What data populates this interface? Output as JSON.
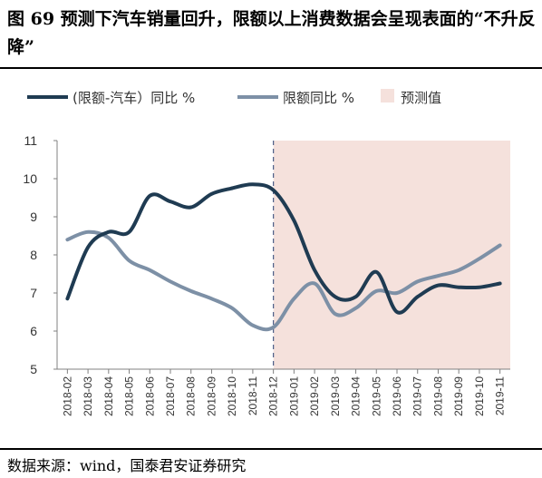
{
  "figure": {
    "title": "图 69 预测下汽车销量回升，限额以上消费数据会呈现表面的“不升反降”",
    "source": "数据来源：wind，国泰君安证券研究"
  },
  "chart_data": {
    "type": "line",
    "categories": [
      "2018-02",
      "2018-03",
      "2018-04",
      "2018-05",
      "2018-06",
      "2018-07",
      "2018-08",
      "2018-09",
      "2018-10",
      "2018-11",
      "2018-12",
      "2019-01",
      "2019-02",
      "2019-03",
      "2019-04",
      "2019-05",
      "2019-06",
      "2019-07",
      "2019-08",
      "2019-09",
      "2019-10",
      "2019-11"
    ],
    "ylim": [
      5,
      11
    ],
    "yticks": [
      5,
      6,
      7,
      8,
      9,
      10,
      11
    ],
    "forecast_region": {
      "start": "2018-12",
      "end": "2019-11",
      "label": "预测值",
      "color": "#f5e1dc"
    },
    "series": [
      {
        "name": "(限额-汽车）同比 %",
        "color": "#1f3b52",
        "values": [
          6.85,
          8.2,
          8.6,
          8.6,
          9.55,
          9.4,
          9.25,
          9.6,
          9.75,
          9.85,
          9.7,
          8.9,
          7.6,
          6.9,
          6.9,
          7.55,
          6.5,
          6.9,
          7.2,
          7.15,
          7.15,
          7.25
        ]
      },
      {
        "name": "限额同比 %",
        "color": "#7d90a6",
        "values": [
          8.4,
          8.6,
          8.45,
          7.85,
          7.6,
          7.3,
          7.05,
          6.85,
          6.6,
          6.15,
          6.1,
          6.85,
          7.25,
          6.45,
          6.6,
          7.05,
          7.0,
          7.3,
          7.45,
          7.6,
          7.9,
          8.25
        ]
      }
    ],
    "legend": {
      "placement": "top"
    }
  }
}
